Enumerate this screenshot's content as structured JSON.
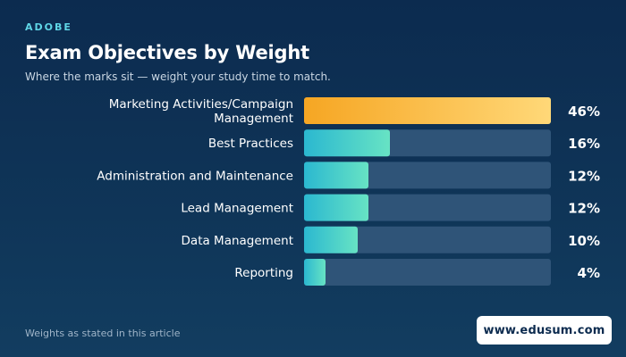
{
  "header": {
    "eyebrow": "ADOBE",
    "title": "Exam Objectives by Weight",
    "subtitle": "Where the marks sit — weight your study time to match."
  },
  "footer": {
    "note": "Weights as stated in this article",
    "badge": "www.edusum.com"
  },
  "colors": {
    "highlight_start": "#f6a623",
    "highlight_end": "#ffd878",
    "bar_start": "#2bb8d0",
    "bar_end": "#67e3c4",
    "track": "#2f5478",
    "label": "#ffffff"
  },
  "chart_data": {
    "type": "bar",
    "orientation": "horizontal",
    "categories": [
      [
        "Marketing Activities/Campaign",
        "Management"
      ],
      [
        "Best Practices"
      ],
      [
        "Administration and Maintenance"
      ],
      [
        "Lead Management"
      ],
      [
        "Data Management"
      ],
      [
        "Reporting"
      ]
    ],
    "values": [
      46,
      16,
      12,
      12,
      10,
      4
    ],
    "value_labels": [
      "46%",
      "16%",
      "12%",
      "12%",
      "10%",
      "4%"
    ],
    "xlim": [
      0,
      46
    ],
    "highlight_index": 0,
    "grid": false,
    "legend": "none"
  }
}
